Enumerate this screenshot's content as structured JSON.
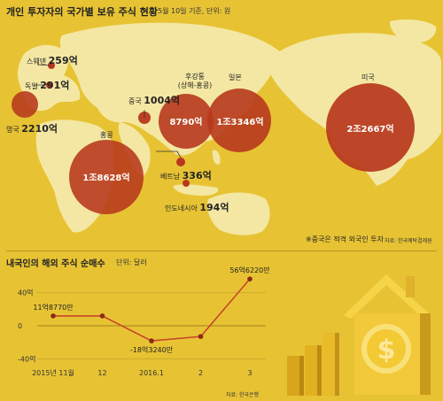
{
  "header": {
    "title": "개인 투자자의 국가별 보유 주식 현황",
    "subtitle": "5월 10일 기준, 단위: 원"
  },
  "map_bubbles": [
    {
      "country": "스웨덴",
      "value": "259억"
    },
    {
      "country": "독일",
      "value": "291억"
    },
    {
      "country": "영국",
      "value": "2210억"
    },
    {
      "country": "중국",
      "value": "1004억"
    },
    {
      "country": "후강퉁\n(상해-홍콩)",
      "value": "8790억"
    },
    {
      "country": "일본",
      "value": "1조3346억"
    },
    {
      "country": "미국",
      "value": "2조2667억"
    },
    {
      "country": "홍콩",
      "value": "1조8628억"
    },
    {
      "country": "베트남",
      "value": "336억"
    },
    {
      "country": "인도네시아",
      "value": "194억"
    }
  ],
  "footnote": "※중국은 적격 외국인 투자",
  "footnote_source": "자료: 한국예탁결제원",
  "colors": {
    "background": "#e7c334",
    "bubble": "#b7381d",
    "land": "#f4e7a3",
    "line": "#c8452b"
  },
  "chart_data": {
    "type": "line",
    "title": "내국인의 해외 주식 순매수",
    "unit": "단위: 달러",
    "x": [
      "2015년 11월",
      "12",
      "2016.1",
      "2",
      "3"
    ],
    "series": [
      {
        "values": [
          11.877,
          11.877,
          -18.324,
          -13,
          56.622
        ]
      }
    ],
    "data_labels": [
      "11억8770만",
      "",
      "-18억3240만",
      "",
      "56억6220만"
    ],
    "y_ticks": [
      {
        "value": 40,
        "label": "40억"
      },
      {
        "value": 0,
        "label": "0"
      },
      {
        "value": -40,
        "label": "-40억"
      }
    ],
    "ylim": [
      -45,
      60
    ],
    "source": "자료: 한국은행"
  }
}
